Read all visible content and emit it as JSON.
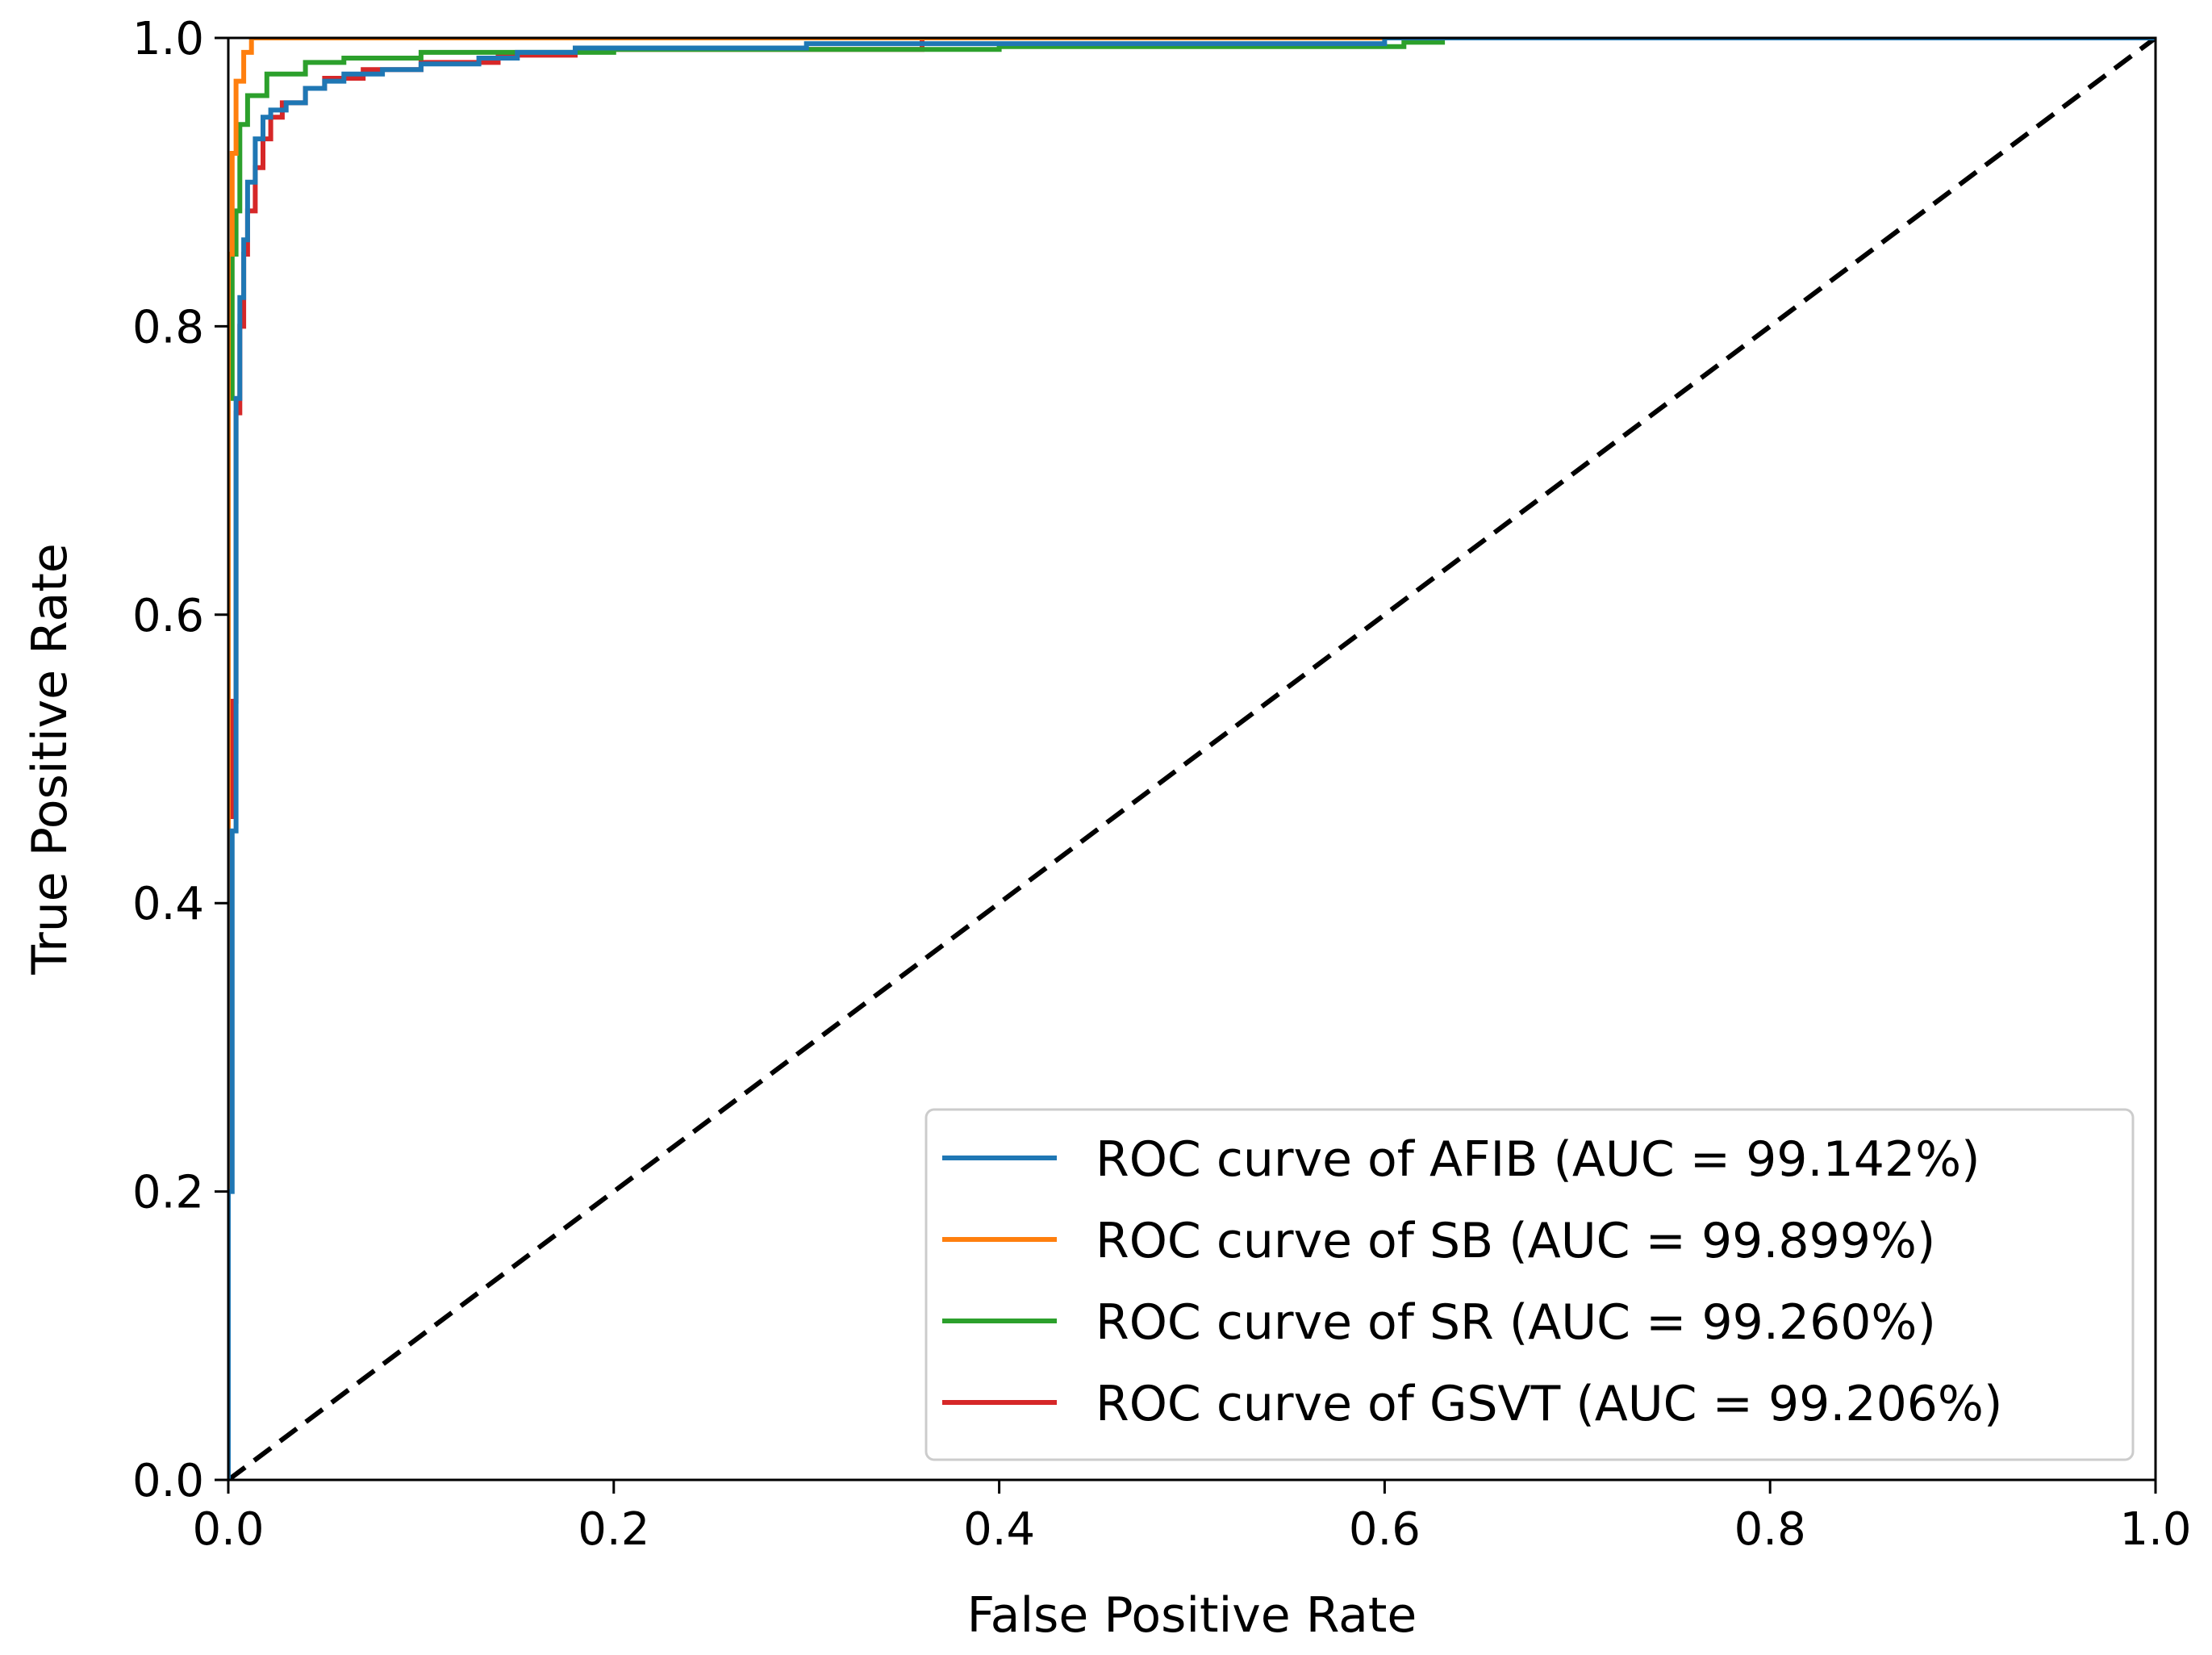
{
  "chart_data": {
    "type": "line",
    "title": "",
    "xlabel": "False Positive Rate",
    "ylabel": "True Positive Rate",
    "xlim": [
      0.0,
      1.0
    ],
    "ylim": [
      0.0,
      1.0
    ],
    "x_ticks": [
      "0.0",
      "0.2",
      "0.4",
      "0.6",
      "0.8",
      "1.0"
    ],
    "y_ticks": [
      "0.0",
      "0.2",
      "0.4",
      "0.6",
      "0.8",
      "1.0"
    ],
    "grid": false,
    "legend_position": "lower-right",
    "series": [
      {
        "name": "ROC curve of AFIB (AUC = 99.142%)",
        "color": "#1f77b4",
        "x": [
          0,
          0,
          0.002,
          0.002,
          0.004,
          0.004,
          0.006,
          0.006,
          0.008,
          0.008,
          0.01,
          0.01,
          0.014,
          0.014,
          0.018,
          0.018,
          0.022,
          0.022,
          0.03,
          0.03,
          0.04,
          0.04,
          0.05,
          0.05,
          0.06,
          0.06,
          0.08,
          0.08,
          0.1,
          0.1,
          0.13,
          0.13,
          0.15,
          0.15,
          0.18,
          0.18,
          0.3,
          0.3,
          0.6,
          0.6,
          0.7,
          1.0
        ],
        "y": [
          0,
          0.2,
          0.2,
          0.45,
          0.45,
          0.75,
          0.75,
          0.82,
          0.82,
          0.86,
          0.86,
          0.9,
          0.9,
          0.93,
          0.93,
          0.945,
          0.945,
          0.95,
          0.95,
          0.955,
          0.955,
          0.965,
          0.965,
          0.97,
          0.97,
          0.975,
          0.975,
          0.978,
          0.978,
          0.982,
          0.982,
          0.986,
          0.986,
          0.99,
          0.99,
          0.993,
          0.993,
          0.996,
          0.996,
          1.0,
          1.0,
          1.0
        ]
      },
      {
        "name": "ROC curve of SB (AUC = 99.899%)",
        "color": "#ff7f0e",
        "x": [
          0,
          0,
          0.002,
          0.002,
          0.004,
          0.004,
          0.008,
          0.008,
          0.012,
          0.012,
          0.1,
          1.0
        ],
        "y": [
          0,
          0.85,
          0.85,
          0.92,
          0.92,
          0.97,
          0.97,
          0.99,
          0.99,
          1.0,
          1.0,
          1.0
        ]
      },
      {
        "name": "ROC curve of SR (AUC = 99.260%)",
        "color": "#2ca02c",
        "x": [
          0,
          0,
          0.002,
          0.002,
          0.004,
          0.004,
          0.006,
          0.006,
          0.01,
          0.01,
          0.02,
          0.02,
          0.04,
          0.04,
          0.06,
          0.06,
          0.1,
          0.1,
          0.2,
          0.2,
          0.4,
          0.4,
          0.61,
          0.61,
          0.63,
          0.63,
          0.7,
          1.0
        ],
        "y": [
          0,
          0.75,
          0.75,
          0.85,
          0.85,
          0.88,
          0.88,
          0.94,
          0.94,
          0.96,
          0.96,
          0.975,
          0.975,
          0.983,
          0.983,
          0.986,
          0.986,
          0.99,
          0.99,
          0.992,
          0.992,
          0.994,
          0.994,
          0.997,
          0.997,
          1.0,
          1.0,
          1.0
        ]
      },
      {
        "name": "ROC curve of GSVT (AUC = 99.206%)",
        "color": "#d62728",
        "x": [
          0,
          0,
          0.002,
          0.002,
          0.004,
          0.004,
          0.006,
          0.006,
          0.008,
          0.008,
          0.01,
          0.01,
          0.014,
          0.014,
          0.018,
          0.018,
          0.022,
          0.022,
          0.028,
          0.028,
          0.04,
          0.04,
          0.05,
          0.05,
          0.07,
          0.07,
          0.1,
          0.1,
          0.14,
          0.14,
          0.18,
          0.18,
          0.36,
          0.36,
          1.0
        ],
        "y": [
          0,
          0.46,
          0.46,
          0.54,
          0.54,
          0.74,
          0.74,
          0.8,
          0.8,
          0.85,
          0.85,
          0.88,
          0.88,
          0.91,
          0.91,
          0.93,
          0.93,
          0.945,
          0.945,
          0.955,
          0.955,
          0.965,
          0.965,
          0.972,
          0.972,
          0.978,
          0.978,
          0.983,
          0.983,
          0.988,
          0.988,
          0.992,
          0.992,
          1.0,
          1.0
        ]
      },
      {
        "name": "chance",
        "color": "#000000",
        "style": "dashed",
        "in_legend": false,
        "x": [
          0,
          1
        ],
        "y": [
          0,
          1
        ]
      }
    ]
  }
}
